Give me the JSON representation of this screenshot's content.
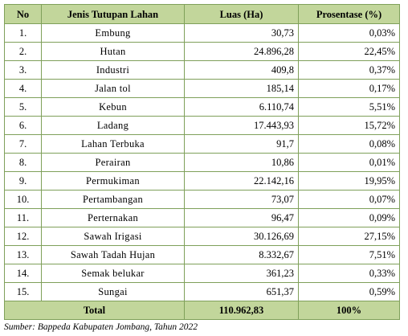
{
  "table": {
    "headers": [
      "No",
      "Jenis Tutupan Lahan",
      "Luas (Ha)",
      "Prosentase (%)"
    ],
    "rows": [
      {
        "no": "1.",
        "name": "Embung",
        "area": "30,73",
        "percent": "0,03%"
      },
      {
        "no": "2.",
        "name": "Hutan",
        "area": "24.896,28",
        "percent": "22,45%"
      },
      {
        "no": "3.",
        "name": "Industri",
        "area": "409,8",
        "percent": "0,37%"
      },
      {
        "no": "4.",
        "name": "Jalan tol",
        "area": "185,14",
        "percent": "0,17%"
      },
      {
        "no": "5.",
        "name": "Kebun",
        "area": "6.110,74",
        "percent": "5,51%"
      },
      {
        "no": "6.",
        "name": "Ladang",
        "area": "17.443,93",
        "percent": "15,72%"
      },
      {
        "no": "7.",
        "name": "Lahan Terbuka",
        "area": "91,7",
        "percent": "0,08%"
      },
      {
        "no": "8.",
        "name": "Perairan",
        "area": "10,86",
        "percent": "0,01%"
      },
      {
        "no": "9.",
        "name": "Permukiman",
        "area": "22.142,16",
        "percent": "19,95%"
      },
      {
        "no": "10.",
        "name": "Pertambangan",
        "area": "73,07",
        "percent": "0,07%"
      },
      {
        "no": "11.",
        "name": "Perternakan",
        "area": "96,47",
        "percent": "0,09%"
      },
      {
        "no": "12.",
        "name": "Sawah Irigasi",
        "area": "30.126,69",
        "percent": "27,15%"
      },
      {
        "no": "13.",
        "name": "Sawah Tadah Hujan",
        "area": "8.332,67",
        "percent": "7,51%"
      },
      {
        "no": "14.",
        "name": "Semak belukar",
        "area": "361,23",
        "percent": "0,33%"
      },
      {
        "no": "15.",
        "name": "Sungai",
        "area": "651,37",
        "percent": "0,59%"
      }
    ],
    "total": {
      "label": "Total",
      "area": "110.962,83",
      "percent": "100%"
    }
  },
  "source": "Sumber: Bappeda Kabupaten Jombang, Tahun 2022",
  "colors": {
    "header_bg": "#c2d69b",
    "border": "#7fa05a"
  }
}
